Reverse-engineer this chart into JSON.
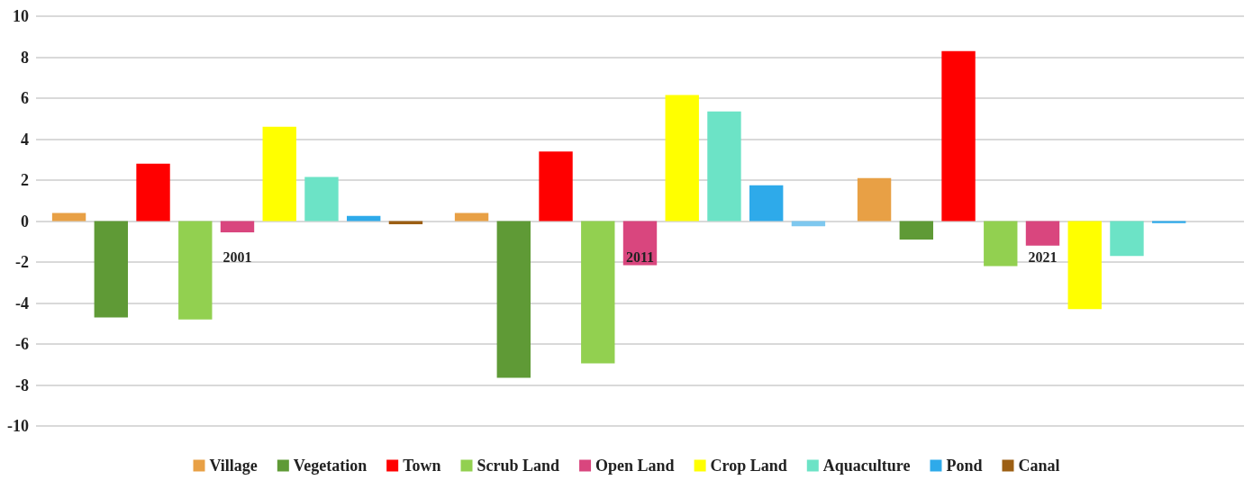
{
  "chart_data": {
    "type": "bar",
    "categories": [
      "2001",
      "2011",
      "2021"
    ],
    "series": [
      {
        "name": "Village",
        "color": "#e8a045",
        "values": [
          0.4,
          0.4,
          2.1
        ]
      },
      {
        "name": "Vegetation",
        "color": "#5f9a36",
        "values": [
          -4.7,
          -7.65,
          -0.9
        ]
      },
      {
        "name": "Town",
        "color": "#ff0000",
        "values": [
          2.8,
          3.4,
          8.3
        ]
      },
      {
        "name": "Scrub Land",
        "color": "#92d050",
        "values": [
          -4.8,
          -6.95,
          -2.2
        ]
      },
      {
        "name": "Open Land",
        "color": "#d9467e",
        "values": [
          -0.55,
          -2.15,
          -1.2
        ]
      },
      {
        "name": "Crop Land",
        "color": "#ffff00",
        "values": [
          4.6,
          6.15,
          -4.3
        ]
      },
      {
        "name": "Aquaculture",
        "color": "#6ce3c6",
        "values": [
          2.15,
          5.35,
          -1.7
        ]
      },
      {
        "name": "Pond",
        "color": "#2eaaea",
        "values": [
          0.25,
          1.75,
          -0.1
        ]
      },
      {
        "name": "Canal",
        "color": "#9c5f14",
        "colors": [
          "#9c5f14",
          "#7ec8ef",
          "#9c5f14"
        ],
        "values": [
          -0.15,
          -0.25,
          0
        ]
      }
    ],
    "ylim": [
      -10,
      10
    ],
    "yticks": [
      -10,
      -8,
      -6,
      -4,
      -2,
      0,
      2,
      4,
      6,
      8,
      10
    ],
    "grid": "y",
    "legend": "bottom"
  }
}
